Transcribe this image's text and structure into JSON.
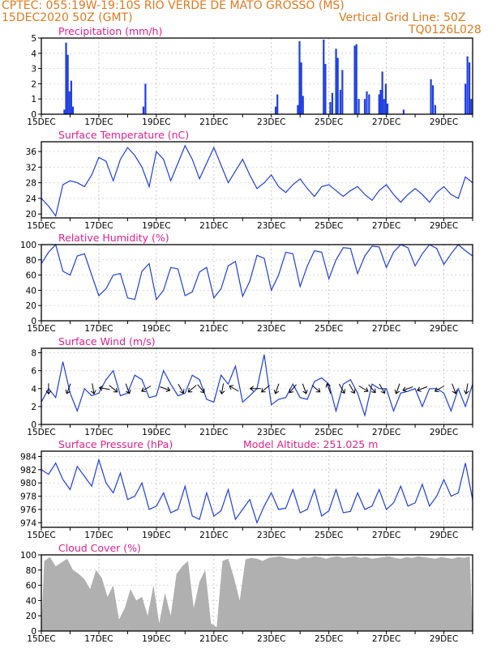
{
  "header": {
    "line1": "CPTEC:   055:19W-19:10S  RIO VERDE DE MATO GROSSO (MS)",
    "line2": "15DEC2020 50Z (GMT)",
    "grid_note": "Vertical Grid Line: 50Z",
    "code": "TQ0126L028"
  },
  "colors": {
    "header": "#e07a1f",
    "panel_title": "#e0218a",
    "series": "#1f3fe0",
    "cloud": "#b0b0b0",
    "wind_arrow": "#000000"
  },
  "x_ticks": [
    "15DEC",
    "17DEC",
    "19DEC",
    "21DEC",
    "23DEC",
    "25DEC",
    "27DEC",
    "29DEC"
  ],
  "chart_data": [
    {
      "type": "bar",
      "title": "Precipitation (mm/h)",
      "ylim": [
        0,
        5
      ],
      "yticks": [
        0,
        1,
        2,
        3,
        4,
        5
      ],
      "bars": [
        [
          0.8,
          0.3
        ],
        [
          0.86,
          4.7
        ],
        [
          0.92,
          3.9
        ],
        [
          0.98,
          1.5
        ],
        [
          1.04,
          2.2
        ],
        [
          1.1,
          0.5
        ],
        [
          3.55,
          0.5
        ],
        [
          3.62,
          2.0
        ],
        [
          8.15,
          0.5
        ],
        [
          8.21,
          1.3
        ],
        [
          8.92,
          0.6
        ],
        [
          8.98,
          4.8
        ],
        [
          9.04,
          3.4
        ],
        [
          9.1,
          1.2
        ],
        [
          9.82,
          4.9
        ],
        [
          9.88,
          3.3
        ],
        [
          10.05,
          0.8
        ],
        [
          10.12,
          1.4
        ],
        [
          10.25,
          4.3
        ],
        [
          10.31,
          3.7
        ],
        [
          10.4,
          1.6
        ],
        [
          10.47,
          2.9
        ],
        [
          10.9,
          4.5
        ],
        [
          10.96,
          4.6
        ],
        [
          11.04,
          1.0
        ],
        [
          11.25,
          1.0
        ],
        [
          11.32,
          1.5
        ],
        [
          11.4,
          1.3
        ],
        [
          11.75,
          1.3
        ],
        [
          11.8,
          1.6
        ],
        [
          11.86,
          2.8
        ],
        [
          11.92,
          1.0
        ],
        [
          11.98,
          2.0
        ],
        [
          12.04,
          0.7
        ],
        [
          12.6,
          0.3
        ],
        [
          13.55,
          2.3
        ],
        [
          13.62,
          1.9
        ],
        [
          13.7,
          0.6
        ],
        [
          14.75,
          2.0
        ],
        [
          14.82,
          3.8
        ],
        [
          14.89,
          3.4
        ],
        [
          14.95,
          1.0
        ]
      ],
      "xlabel": "",
      "ylabel": ""
    },
    {
      "type": "line",
      "title": "Surface Temperature (nC)",
      "ylim": [
        19,
        38.5
      ],
      "yticks": [
        20,
        24,
        28,
        32,
        36
      ],
      "x": [
        0,
        0.25,
        0.5,
        0.75,
        1,
        1.25,
        1.5,
        1.75,
        2,
        2.25,
        2.5,
        2.75,
        3,
        3.25,
        3.5,
        3.75,
        4,
        4.25,
        4.5,
        4.75,
        5,
        5.25,
        5.5,
        5.75,
        6,
        6.25,
        6.5,
        6.75,
        7,
        7.25,
        7.5,
        7.75,
        8,
        8.25,
        8.5,
        8.75,
        9,
        9.25,
        9.5,
        9.75,
        10,
        10.25,
        10.5,
        10.75,
        11,
        11.25,
        11.5,
        11.75,
        12,
        12.25,
        12.5,
        12.75,
        13,
        13.25,
        13.5,
        13.75,
        14,
        14.25,
        14.5,
        14.75,
        15
      ],
      "values": [
        24,
        22,
        19.5,
        27.5,
        28.5,
        28,
        27,
        30,
        34.5,
        33.5,
        28.5,
        34,
        37,
        35,
        32,
        27,
        36,
        34,
        28.5,
        33,
        37.5,
        34,
        29,
        33,
        37,
        32.5,
        28,
        31,
        34,
        30,
        26.5,
        28,
        30,
        27,
        25.5,
        27.5,
        29,
        26.5,
        24.5,
        27,
        27.5,
        26,
        24.5,
        26,
        27,
        25,
        23.5,
        26,
        27.5,
        25,
        23,
        25,
        26.5,
        25,
        23,
        25.5,
        27,
        25,
        24,
        29.5,
        28
      ],
      "xlabel": "",
      "ylabel": ""
    },
    {
      "type": "line",
      "title": "Relative Humidity (%)",
      "ylim": [
        0,
        100
      ],
      "yticks": [
        0,
        20,
        40,
        60,
        80,
        100
      ],
      "x": [
        0,
        0.25,
        0.5,
        0.75,
        1,
        1.25,
        1.5,
        1.75,
        2,
        2.25,
        2.5,
        2.75,
        3,
        3.25,
        3.5,
        3.75,
        4,
        4.25,
        4.5,
        4.75,
        5,
        5.25,
        5.5,
        5.75,
        6,
        6.25,
        6.5,
        6.75,
        7,
        7.25,
        7.5,
        7.75,
        8,
        8.25,
        8.5,
        8.75,
        9,
        9.25,
        9.5,
        9.75,
        10,
        10.25,
        10.5,
        10.75,
        11,
        11.25,
        11.5,
        11.75,
        12,
        12.25,
        12.5,
        12.75,
        13,
        13.25,
        13.5,
        13.75,
        14,
        14.25,
        14.5,
        14.75,
        15
      ],
      "values": [
        75,
        90,
        100,
        65,
        60,
        85,
        88,
        60,
        33,
        42,
        60,
        62,
        30,
        28,
        65,
        75,
        28,
        40,
        70,
        68,
        33,
        38,
        64,
        70,
        30,
        42,
        72,
        78,
        32,
        52,
        86,
        82,
        40,
        60,
        90,
        88,
        45,
        72,
        92,
        90,
        55,
        80,
        96,
        95,
        62,
        85,
        98,
        97,
        70,
        90,
        100,
        96,
        72,
        88,
        100,
        95,
        74,
        88,
        100,
        92,
        85
      ],
      "xlabel": "",
      "ylabel": ""
    },
    {
      "type": "line",
      "title": "Surface Wind (m/s)",
      "ylim": [
        0,
        8.5
      ],
      "yticks": [
        0,
        2,
        4,
        6,
        8
      ],
      "x": [
        0,
        0.25,
        0.5,
        0.75,
        1,
        1.25,
        1.5,
        1.75,
        2,
        2.25,
        2.5,
        2.75,
        3,
        3.25,
        3.5,
        3.75,
        4,
        4.25,
        4.5,
        4.75,
        5,
        5.25,
        5.5,
        5.75,
        6,
        6.25,
        6.5,
        6.75,
        7,
        7.25,
        7.5,
        7.75,
        8,
        8.25,
        8.5,
        8.75,
        9,
        9.25,
        9.5,
        9.75,
        10,
        10.25,
        10.5,
        10.75,
        11,
        11.25,
        11.5,
        11.75,
        12,
        12.25,
        12.5,
        12.75,
        13,
        13.25,
        13.5,
        13.75,
        14,
        14.25,
        14.5,
        14.75,
        15
      ],
      "values": [
        2.5,
        4,
        3,
        7,
        3.5,
        1.5,
        4,
        3.2,
        3.5,
        5,
        6,
        3.2,
        3.5,
        5.5,
        5,
        3,
        3.2,
        6,
        4.5,
        3.2,
        3.5,
        5.5,
        5,
        2.8,
        2.5,
        5.5,
        4.5,
        6.5,
        2.5,
        3.2,
        4,
        7.8,
        2.2,
        2.8,
        3,
        4.5,
        3,
        2.8,
        4.8,
        5.2,
        4.5,
        1.5,
        4.5,
        5,
        3.5,
        1,
        4.5,
        4,
        4,
        1.5,
        3.5,
        3.7,
        4,
        2,
        4,
        4,
        3.5,
        1.5,
        4,
        2,
        4.5
      ],
      "arrows": [
        [
          0.25,
          180
        ],
        [
          0.95,
          200
        ],
        [
          1.8,
          170
        ],
        [
          2.2,
          280
        ],
        [
          2.5,
          130
        ],
        [
          3.0,
          160
        ],
        [
          3.65,
          240
        ],
        [
          4.3,
          110
        ],
        [
          4.85,
          150
        ],
        [
          5.25,
          230
        ],
        [
          5.55,
          140
        ],
        [
          6.3,
          190
        ],
        [
          6.7,
          300
        ],
        [
          7.45,
          270
        ],
        [
          7.8,
          230
        ],
        [
          8.2,
          200
        ],
        [
          8.75,
          220
        ],
        [
          9.15,
          160
        ],
        [
          9.55,
          130
        ],
        [
          10.0,
          340
        ],
        [
          10.45,
          150
        ],
        [
          10.8,
          150
        ],
        [
          11.2,
          120
        ],
        [
          11.5,
          140
        ],
        [
          11.85,
          150
        ],
        [
          12.4,
          200
        ],
        [
          12.75,
          250
        ],
        [
          13.25,
          250
        ],
        [
          13.85,
          240
        ],
        [
          14.35,
          160
        ],
        [
          14.8,
          190
        ]
      ],
      "xlabel": "",
      "ylabel": ""
    },
    {
      "type": "line",
      "title": "Surface Pressure (hPa)",
      "annotation": "Model Altitude: 251.025 m",
      "ylim": [
        973.3,
        984.8
      ],
      "yticks": [
        974,
        976,
        978,
        980,
        982,
        984
      ],
      "x": [
        0,
        0.25,
        0.5,
        0.75,
        1,
        1.25,
        1.5,
        1.75,
        2,
        2.25,
        2.5,
        2.75,
        3,
        3.25,
        3.5,
        3.75,
        4,
        4.25,
        4.5,
        4.75,
        5,
        5.25,
        5.5,
        5.75,
        6,
        6.25,
        6.5,
        6.75,
        7,
        7.25,
        7.5,
        7.75,
        8,
        8.25,
        8.5,
        8.75,
        9,
        9.25,
        9.5,
        9.75,
        10,
        10.25,
        10.5,
        10.75,
        11,
        11.25,
        11.5,
        11.75,
        12,
        12.25,
        12.5,
        12.75,
        13,
        13.25,
        13.5,
        13.75,
        14,
        14.25,
        14.5,
        14.75,
        15
      ],
      "values": [
        982,
        981.3,
        983,
        980.5,
        979,
        982.5,
        981,
        979.5,
        983.5,
        980,
        978.5,
        981.5,
        977.5,
        978,
        980,
        976,
        976.5,
        978.5,
        975.5,
        976,
        979.5,
        975,
        974.5,
        978.5,
        975,
        975.8,
        979,
        974.5,
        976,
        977.5,
        974,
        976.5,
        978.5,
        976,
        976.2,
        979,
        975.5,
        976,
        979,
        975,
        975.8,
        979,
        975.5,
        975.7,
        978.5,
        976,
        976.5,
        979,
        976,
        977,
        979.5,
        976.5,
        977,
        979.8,
        976.5,
        978,
        980.5,
        978,
        978.5,
        983,
        977.5
      ],
      "xlabel": "",
      "ylabel": ""
    },
    {
      "type": "area",
      "title": "Cloud Cover (%)",
      "ylim": [
        0,
        100
      ],
      "yticks": [
        0,
        20,
        40,
        60,
        80,
        100
      ],
      "x": [
        0,
        0.1,
        0.3,
        0.5,
        0.7,
        0.9,
        1.1,
        1.3,
        1.5,
        1.7,
        1.9,
        2.1,
        2.3,
        2.5,
        2.7,
        2.9,
        3.1,
        3.3,
        3.5,
        3.7,
        3.9,
        4.1,
        4.3,
        4.5,
        4.7,
        4.9,
        5.1,
        5.3,
        5.5,
        5.7,
        5.9,
        6.1,
        6.3,
        6.5,
        6.7,
        6.9,
        7.1,
        7.3,
        7.5,
        7.7,
        7.9,
        8.1,
        8.3,
        8.5,
        8.7,
        8.9,
        9.1,
        9.3,
        9.5,
        9.7,
        9.9,
        10.1,
        10.3,
        10.5,
        10.7,
        10.9,
        11.1,
        11.3,
        11.5,
        11.7,
        11.9,
        12.1,
        12.3,
        12.5,
        12.7,
        12.9,
        13.1,
        13.3,
        13.5,
        13.7,
        13.9,
        14.1,
        14.3,
        14.5,
        14.7,
        14.9,
        15
      ],
      "values": [
        0,
        92,
        97,
        85,
        90,
        95,
        80,
        75,
        68,
        55,
        80,
        70,
        45,
        60,
        15,
        30,
        55,
        40,
        45,
        20,
        60,
        10,
        50,
        20,
        75,
        85,
        92,
        30,
        65,
        80,
        10,
        5,
        92,
        95,
        70,
        40,
        94,
        96,
        95,
        92,
        96,
        97,
        98,
        96,
        95,
        94,
        97,
        96,
        98,
        97,
        95,
        97,
        98,
        96,
        97,
        98,
        96,
        97,
        95,
        96,
        97,
        98,
        96,
        95,
        97,
        96,
        98,
        97,
        96,
        95,
        97,
        96,
        95,
        97,
        96,
        98,
        0
      ],
      "xlabel": "",
      "ylabel": ""
    }
  ]
}
